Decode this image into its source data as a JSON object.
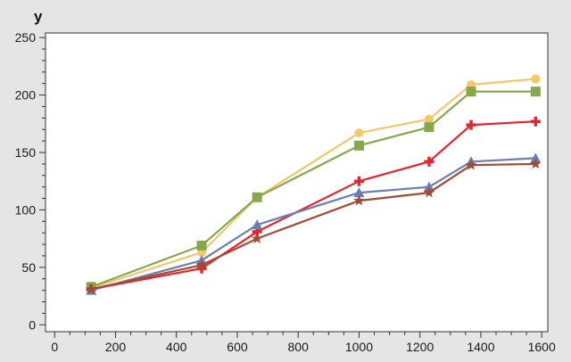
{
  "chart_data": {
    "type": "line",
    "title": "",
    "xlabel": "",
    "ylabel": "y",
    "xlim": [
      -30,
      1620
    ],
    "ylim": [
      -6,
      254
    ],
    "x_ticks": [
      0,
      200,
      400,
      600,
      800,
      1000,
      1200,
      1400,
      1600
    ],
    "y_ticks": [
      0,
      50,
      100,
      150,
      200,
      250
    ],
    "grid": false,
    "legend": "none",
    "x": [
      120,
      483,
      665,
      1000,
      1230,
      1368,
      1580
    ],
    "series": [
      {
        "color": "#f5c76a",
        "marker": "circle",
        "values": [
          32,
          63,
          111,
          167,
          179,
          209,
          214
        ]
      },
      {
        "color": "#86a74a",
        "marker": "square",
        "values": [
          33,
          69,
          111,
          156,
          172,
          203,
          203
        ]
      },
      {
        "color": "#e8232a",
        "marker": "plus",
        "values": [
          31,
          49,
          81,
          125,
          142,
          174,
          177
        ]
      },
      {
        "color": "#6a7fb0",
        "marker": "triangle",
        "values": [
          30,
          56,
          87,
          115,
          120,
          142,
          145
        ]
      },
      {
        "color": "#a44a34",
        "marker": "star",
        "values": [
          31,
          52,
          75,
          108,
          115,
          139,
          140
        ]
      }
    ]
  }
}
